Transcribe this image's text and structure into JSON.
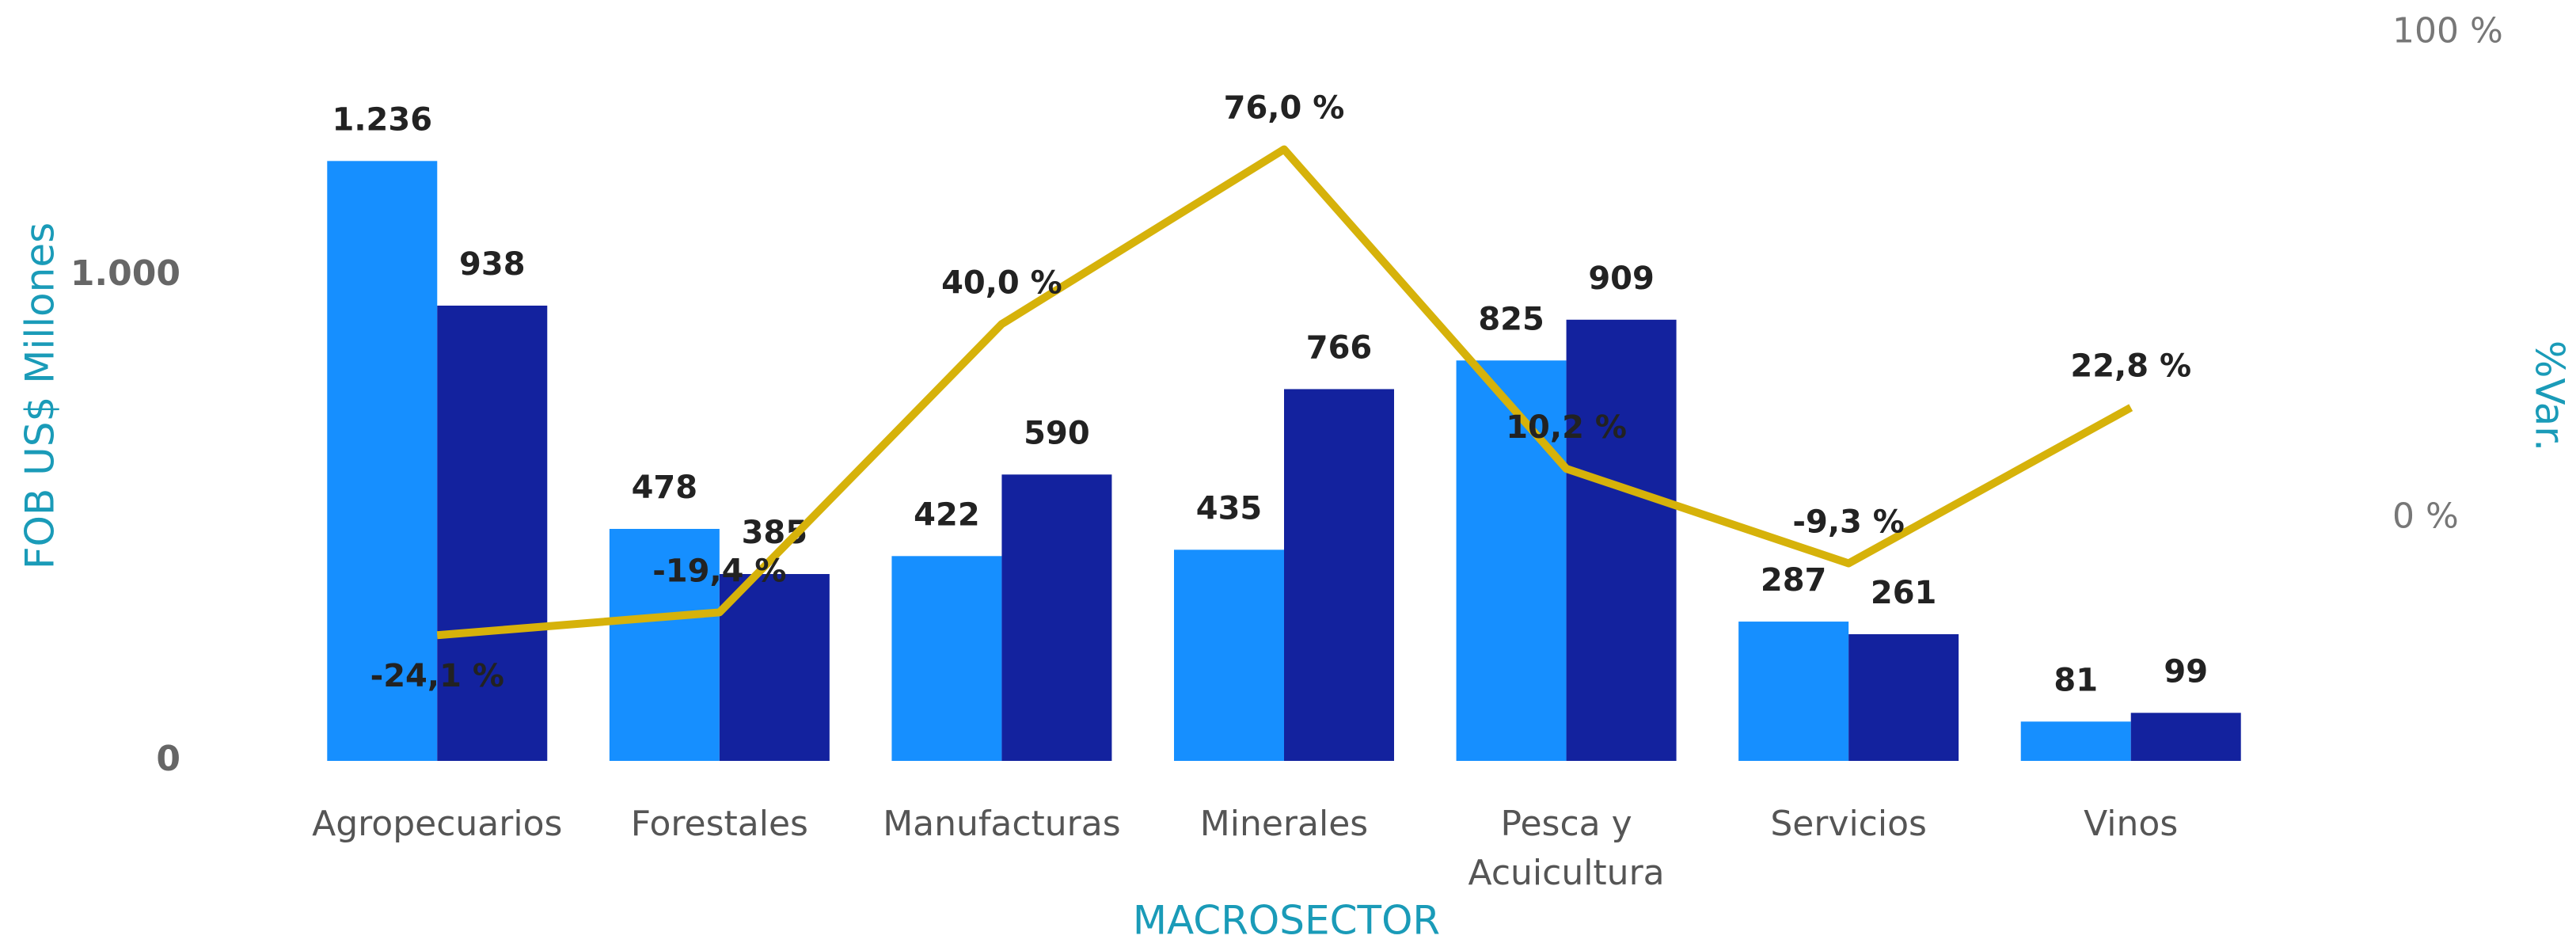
{
  "chart_data": {
    "type": "bar",
    "categories": [
      "Agropecuarios",
      "Forestales",
      "Manufacturas",
      "Minerales",
      "Pesca y Acuicultura",
      "Servicios",
      "Vinos"
    ],
    "series": [
      {
        "color": "#168fff",
        "values": [
          1236,
          478,
          422,
          435,
          825,
          287,
          81
        ],
        "value_labels": [
          "1.236",
          "478",
          "422",
          "435",
          "825",
          "287",
          "81"
        ]
      },
      {
        "color": "#13229e",
        "values": [
          938,
          385,
          590,
          766,
          909,
          261,
          99
        ],
        "value_labels": [
          "938",
          "385",
          "590",
          "766",
          "909",
          "261",
          "99"
        ]
      },
      {
        "type": "line",
        "axis": "y2",
        "color": "#d6b20a",
        "values": [
          -24.1,
          -19.4,
          40.0,
          76.0,
          10.2,
          -9.3,
          22.8
        ],
        "value_labels": [
          "-24,1 %",
          "-19,4 %",
          "40,0 %",
          "76,0 %",
          "10,2 %",
          "-9,3 %",
          "22,8 %"
        ]
      }
    ],
    "ylabel": "FOB US$ Millones",
    "y2label": "%Var.",
    "xlabel": "MACROSECTOR",
    "ylim": [
      0,
      1500
    ],
    "yticks": [
      0,
      {
        "value": 1000,
        "label": "1.000"
      }
    ],
    "y2lim": [
      -50,
      100
    ],
    "y2ticks": [
      {
        "value": 0,
        "label": "0 %"
      },
      {
        "value": 100,
        "label": "100 %"
      }
    ],
    "grid": false
  }
}
